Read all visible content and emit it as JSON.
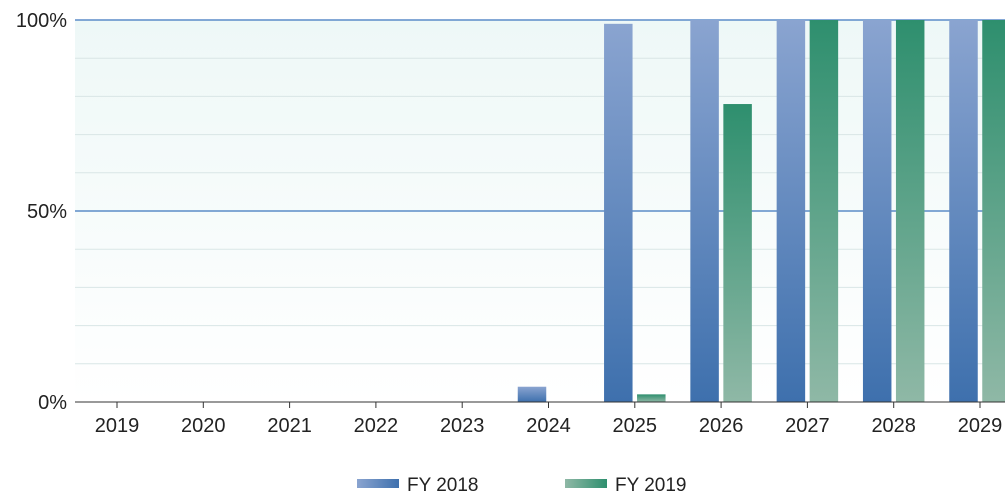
{
  "chart_data": {
    "type": "bar",
    "title": "",
    "xlabel": "",
    "ylabel": "",
    "categories": [
      "2019",
      "2020",
      "2021",
      "2022",
      "2023",
      "2024",
      "2025",
      "2026",
      "2027",
      "2028",
      "2029"
    ],
    "series": [
      {
        "name": "FY 2018",
        "color": "#4a78b4",
        "values": [
          0,
          0,
          0,
          0,
          0,
          4,
          99,
          100,
          100,
          100,
          100
        ]
      },
      {
        "name": "FY 2019",
        "color": "#2e8f6e",
        "values": [
          0,
          0,
          0,
          0,
          0,
          0,
          2,
          78,
          100,
          100,
          100
        ]
      }
    ],
    "ylim": [
      0,
      100
    ],
    "yticks": [
      0,
      50,
      100
    ],
    "ytick_labels": [
      "0%",
      "50%",
      "100%"
    ],
    "grid": true,
    "legend_position": "bottom-center",
    "colors": {
      "grid_major": "#5b8cc8",
      "plot_background": "#f1f8f8"
    }
  }
}
